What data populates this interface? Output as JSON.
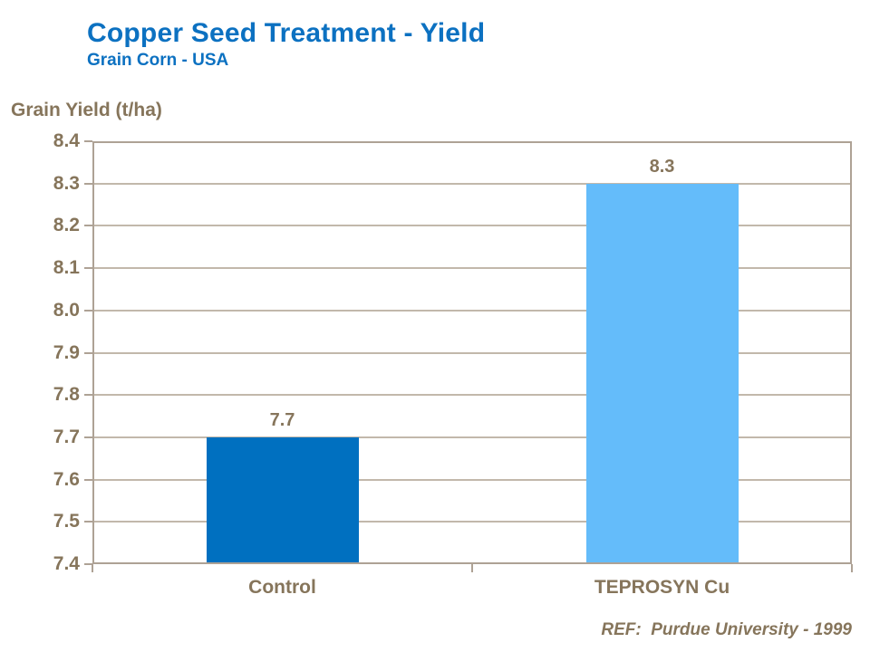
{
  "header": {
    "title": "Copper Seed Treatment - Yield",
    "subtitle": "Grain Corn - USA"
  },
  "chart_data": {
    "type": "bar",
    "title": "Copper Seed Treatment - Yield",
    "subtitle": "Grain Corn - USA",
    "xlabel": "",
    "ylabel": "Grain Yield (t/ha)",
    "categories": [
      "Control",
      "TEPROSYN Cu"
    ],
    "values": [
      7.7,
      8.3
    ],
    "value_labels": [
      "7.7",
      "8.3"
    ],
    "ylim": [
      7.4,
      8.4
    ],
    "yticks": [
      8.4,
      8.3,
      8.2,
      8.1,
      8.0,
      7.9,
      7.8,
      7.7,
      7.6,
      7.5,
      7.4
    ],
    "grid": true,
    "legend": "none",
    "annotation": "REF:  Purdue University - 1999",
    "bar_colors": [
      "#0070C0",
      "#64BCFA"
    ]
  },
  "colors": {
    "title_blue": "#0C71C1",
    "text_brown": "#86755B",
    "axis_frame": "#AEA295",
    "gridline": "#C2B8AB"
  }
}
